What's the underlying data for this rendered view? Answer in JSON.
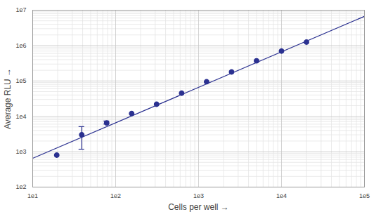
{
  "chart_data": {
    "type": "scatter",
    "x_label": "Cells per well",
    "y_label": "Average RLU",
    "log": true,
    "grid": true,
    "marker": "circle",
    "color": "#2b3190",
    "x": [
      19.5,
      39,
      78,
      156,
      312,
      625,
      1250,
      2500,
      5000,
      10000,
      20000
    ],
    "values": [
      800,
      3000,
      6500,
      12000,
      22000,
      45000,
      95000,
      180000,
      370000,
      700000,
      1250000
    ],
    "error_low": [
      null,
      1150,
      5900,
      null,
      null,
      null,
      null,
      null,
      null,
      null,
      null
    ],
    "error_high": [
      null,
      5000,
      7200,
      null,
      null,
      null,
      null,
      null,
      null,
      null,
      null
    ],
    "fit_line": {
      "x": [
        10,
        100000
      ],
      "values": [
        650,
        6700000
      ]
    },
    "xlim": [
      10,
      100000
    ],
    "ylim": [
      100,
      10000000
    ],
    "xticks": [
      {
        "value": 10,
        "label": "1e1"
      },
      {
        "value": 100,
        "label": "1e2"
      },
      {
        "value": 1000,
        "label": "1e3"
      },
      {
        "value": 10000,
        "label": "1e4"
      },
      {
        "value": 100000,
        "label": "1e5"
      }
    ],
    "yticks": [
      {
        "value": 100,
        "label": "1e2"
      },
      {
        "value": 1000,
        "label": "1e3"
      },
      {
        "value": 10000,
        "label": "1e4"
      },
      {
        "value": 100000,
        "label": "1e5"
      },
      {
        "value": 1000000,
        "label": "1e6"
      },
      {
        "value": 10000000,
        "label": "1e7"
      }
    ]
  }
}
